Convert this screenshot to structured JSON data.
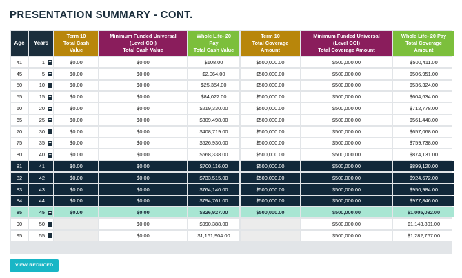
{
  "page": {
    "title": "PRESENTATION SUMMARY - CONT."
  },
  "table": {
    "headers": {
      "age": "Age",
      "years": "Years",
      "term10_cash_l1": "Term 10",
      "term10_cash_l2": "Total Cash",
      "term10_cash_l3": "Value",
      "mfu_cash_l1": "Minimum Funded Universal",
      "mfu_cash_l2": "(Level COI)",
      "mfu_cash_l3": "Total Cash Value",
      "wl_cash_l1": "Whole Life- 20",
      "wl_cash_l2": "Pay",
      "wl_cash_l3": "Total Cash Value",
      "term10_cov_l1": "Term 10",
      "term10_cov_l2": "Total Coverage",
      "term10_cov_l3": "Amount",
      "mfu_cov_l1": "Minimum Funded Universal",
      "mfu_cov_l2": "(Level COI)",
      "mfu_cov_l3": "Total Coverage Amount",
      "wl_cov_l1": "Whole Life- 20 Pay",
      "wl_cov_l2": "Total Coverage",
      "wl_cov_l3": "Amount"
    },
    "colors": {
      "navy": "#1b2e3c",
      "gold": "#b8860b",
      "purple": "#8a1d5c",
      "green": "#7cbf3c",
      "highlight": "#a8e6d3",
      "button": "#19b6c6"
    },
    "rows": [
      {
        "age": "41",
        "year": "1",
        "icon": "+",
        "style": "normal",
        "t10c": "$0.00",
        "mfuc": "$0.00",
        "wlc": "$108.00",
        "t10v": "$500,000.00",
        "mfuv": "$500,000.00",
        "wlv": "$500,411.00"
      },
      {
        "age": "45",
        "year": "5",
        "icon": "+",
        "style": "normal",
        "t10c": "$0.00",
        "mfuc": "$0.00",
        "wlc": "$2,064.00",
        "t10v": "$500,000.00",
        "mfuv": "$500,000.00",
        "wlv": "$506,951.00"
      },
      {
        "age": "50",
        "year": "10",
        "icon": "+",
        "style": "normal",
        "t10c": "$0.00",
        "mfuc": "$0.00",
        "wlc": "$25,354.00",
        "t10v": "$500,000.00",
        "mfuv": "$500,000.00",
        "wlv": "$536,324.00"
      },
      {
        "age": "55",
        "year": "15",
        "icon": "+",
        "style": "normal",
        "t10c": "$0.00",
        "mfuc": "$0.00",
        "wlc": "$84,022.00",
        "t10v": "$500,000.00",
        "mfuv": "$500,000.00",
        "wlv": "$604,634.00"
      },
      {
        "age": "60",
        "year": "20",
        "icon": "+",
        "style": "normal",
        "t10c": "$0.00",
        "mfuc": "$0.00",
        "wlc": "$219,330.00",
        "t10v": "$500,000.00",
        "mfuv": "$500,000.00",
        "wlv": "$712,778.00"
      },
      {
        "age": "65",
        "year": "25",
        "icon": "+",
        "style": "normal",
        "t10c": "$0.00",
        "mfuc": "$0.00",
        "wlc": "$309,498.00",
        "t10v": "$500,000.00",
        "mfuv": "$500,000.00",
        "wlv": "$561,448.00"
      },
      {
        "age": "70",
        "year": "30",
        "icon": "+",
        "style": "normal",
        "t10c": "$0.00",
        "mfuc": "$0.00",
        "wlc": "$408,719.00",
        "t10v": "$500,000.00",
        "mfuv": "$500,000.00",
        "wlv": "$657,068.00"
      },
      {
        "age": "75",
        "year": "35",
        "icon": "+",
        "style": "normal",
        "t10c": "$0.00",
        "mfuc": "$0.00",
        "wlc": "$526,930.00",
        "t10v": "$500,000.00",
        "mfuv": "$500,000.00",
        "wlv": "$759,738.00"
      },
      {
        "age": "80",
        "year": "40",
        "icon": "−",
        "style": "normal",
        "t10c": "$0.00",
        "mfuc": "$0.00",
        "wlc": "$668,338.00",
        "t10v": "$500,000.00",
        "mfuv": "$500,000.00",
        "wlv": "$874,131.00"
      },
      {
        "age": "81",
        "year": "41",
        "icon": "",
        "style": "dark",
        "t10c": "$0.00",
        "mfuc": "$0.00",
        "wlc": "$700,116.00",
        "t10v": "$500,000.00",
        "mfuv": "$500,000.00",
        "wlv": "$899,120.00"
      },
      {
        "age": "82",
        "year": "42",
        "icon": "",
        "style": "dark",
        "t10c": "$0.00",
        "mfuc": "$0.00",
        "wlc": "$733,515.00",
        "t10v": "$500,000.00",
        "mfuv": "$500,000.00",
        "wlv": "$924,672.00"
      },
      {
        "age": "83",
        "year": "43",
        "icon": "",
        "style": "dark",
        "t10c": "$0.00",
        "mfuc": "$0.00",
        "wlc": "$764,140.00",
        "t10v": "$500,000.00",
        "mfuv": "$500,000.00",
        "wlv": "$950,984.00"
      },
      {
        "age": "84",
        "year": "44",
        "icon": "",
        "style": "dark",
        "t10c": "$0.00",
        "mfuc": "$0.00",
        "wlc": "$794,761.00",
        "t10v": "$500,000.00",
        "mfuv": "$500,000.00",
        "wlv": "$977,846.00"
      },
      {
        "age": "85",
        "year": "45",
        "icon": "+",
        "style": "hl",
        "t10c": "$0.00",
        "mfuc": "$0.00",
        "wlc": "$826,927.00",
        "t10v": "$500,000.00",
        "mfuv": "$500,000.00",
        "wlv": "$1,005,082.00"
      },
      {
        "age": "90",
        "year": "50",
        "icon": "+",
        "style": "normal",
        "t10c": "",
        "mfuc": "$0.00",
        "wlc": "$990,388.00",
        "t10v": "",
        "mfuv": "$500,000.00",
        "wlv": "$1,143,801.00"
      },
      {
        "age": "95",
        "year": "55",
        "icon": "+",
        "style": "normal",
        "t10c": "",
        "mfuc": "$0.00",
        "wlc": "$1,161,904.00",
        "t10v": "",
        "mfuv": "$500,000.00",
        "wlv": "$1,282,767.00"
      }
    ]
  },
  "actions": {
    "view_reduced_label": "VIEW REDUCED"
  }
}
